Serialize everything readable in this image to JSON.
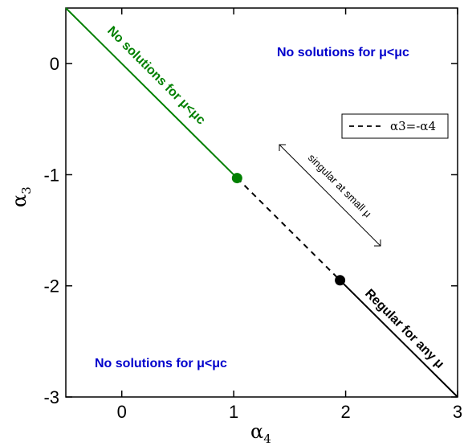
{
  "chart_data": {
    "type": "line",
    "xlabel": "α",
    "xlabel_sub": "4",
    "ylabel": "α",
    "ylabel_sub": "3",
    "xlim": [
      -0.5,
      3
    ],
    "ylim": [
      -3,
      0.5
    ],
    "x_ticks": [
      0,
      1,
      2,
      3
    ],
    "x_tick_labels": [
      "0",
      "1",
      "2",
      "3"
    ],
    "y_ticks": [
      0,
      -1,
      -2,
      -3
    ],
    "y_tick_labels": [
      "0",
      "-1",
      "-2",
      "-3"
    ],
    "legend": {
      "label": "α3=-α4",
      "position": "top-right"
    },
    "series": [
      {
        "color": "#008000",
        "style": "solid",
        "x": [
          -0.5,
          1.03
        ],
        "y": [
          0.5,
          -1.03
        ]
      },
      {
        "color": "#000000",
        "style": "dashed",
        "x": [
          1.03,
          1.95
        ],
        "y": [
          -1.03,
          -1.95
        ]
      },
      {
        "color": "#000000",
        "style": "solid",
        "x": [
          1.95,
          3.0
        ],
        "y": [
          -1.95,
          -3.0
        ]
      }
    ],
    "points": [
      {
        "x": 1.03,
        "y": -1.03,
        "color": "#008000"
      },
      {
        "x": 1.95,
        "y": -1.95,
        "color": "#000000"
      }
    ],
    "annotations": {
      "green_line": "No solutions for μ<μc",
      "top_right": "No solutions for μ<μc",
      "bottom_left": "No solutions for μ<μc",
      "regular": "Regular for any μ",
      "singular": "singular at small μ"
    },
    "colors": {
      "green": "#008000",
      "blue": "#0000cc",
      "black": "#000000"
    }
  }
}
